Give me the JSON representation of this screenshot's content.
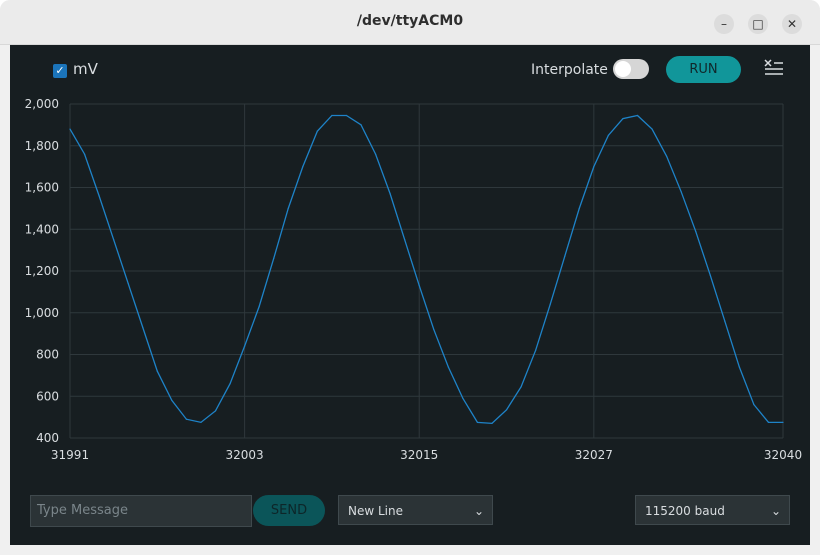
{
  "window": {
    "title": "/dev/ttyACM0",
    "controls": [
      "–",
      "□",
      "✕"
    ]
  },
  "toolbar": {
    "series_checkbox_checked": true,
    "series_label": "mV",
    "interpolate_label": "Interpolate",
    "interpolate_on": false,
    "run_label": "RUN",
    "clear_icon": "clear-lines-icon"
  },
  "colors": {
    "background": "#171e21",
    "line": "#1e83c8",
    "accent": "#11969a",
    "grid": "#2f383c"
  },
  "chart_data": {
    "type": "line",
    "series": [
      {
        "name": "mV",
        "values": [
          1880,
          1760,
          1560,
          1350,
          1140,
          930,
          720,
          580,
          490,
          475,
          530,
          660,
          840,
          1030,
          1260,
          1500,
          1700,
          1870,
          1945,
          1945,
          1900,
          1760,
          1570,
          1350,
          1130,
          920,
          740,
          590,
          475,
          470,
          535,
          645,
          820,
          1040,
          1270,
          1500,
          1700,
          1850,
          1930,
          1945,
          1880,
          1750,
          1580,
          1390,
          1180,
          960,
          740,
          560,
          475,
          475
        ]
      }
    ],
    "x_start": 31991,
    "x_end": 32040,
    "xticks": [
      "31991",
      "32003",
      "32015",
      "32027",
      "32040"
    ],
    "yticks": [
      "2,000",
      "1,800",
      "1,600",
      "1,400",
      "1,200",
      "1,000",
      "800",
      "600",
      "400"
    ],
    "ylim": [
      400,
      2000
    ],
    "grid": true
  },
  "footer": {
    "message_placeholder": "Type Message",
    "send_label": "SEND",
    "line_ending": "New Line",
    "baud": "115200 baud"
  }
}
